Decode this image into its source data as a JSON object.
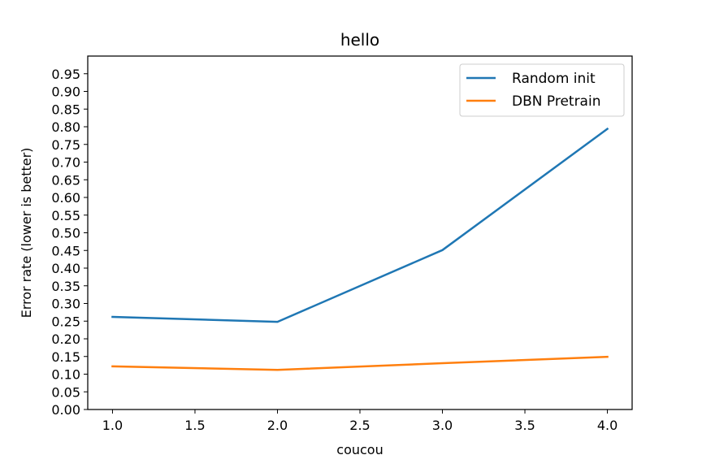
{
  "chart_data": {
    "type": "line",
    "title": "hello",
    "xlabel": "coucou",
    "ylabel": "Error rate (lower is better)",
    "x": [
      1.0,
      2.0,
      3.0,
      4.0
    ],
    "series": [
      {
        "name": "Random init",
        "values": [
          0.262,
          0.248,
          0.451,
          0.794
        ],
        "color": "#1f77b4"
      },
      {
        "name": "DBN Pretrain",
        "values": [
          0.122,
          0.112,
          0.131,
          0.149
        ],
        "color": "#ff7f0e"
      }
    ],
    "xlim": [
      0.85,
      4.15
    ],
    "ylim": [
      0.0,
      1.0
    ],
    "xticks": [
      "1.0",
      "1.5",
      "2.0",
      "2.5",
      "3.0",
      "3.5",
      "4.0"
    ],
    "yticks": [
      "0.00",
      "0.05",
      "0.10",
      "0.15",
      "0.20",
      "0.25",
      "0.30",
      "0.35",
      "0.40",
      "0.45",
      "0.50",
      "0.55",
      "0.60",
      "0.65",
      "0.70",
      "0.75",
      "0.80",
      "0.85",
      "0.90",
      "0.95"
    ],
    "legend": "top-right",
    "grid": false
  }
}
